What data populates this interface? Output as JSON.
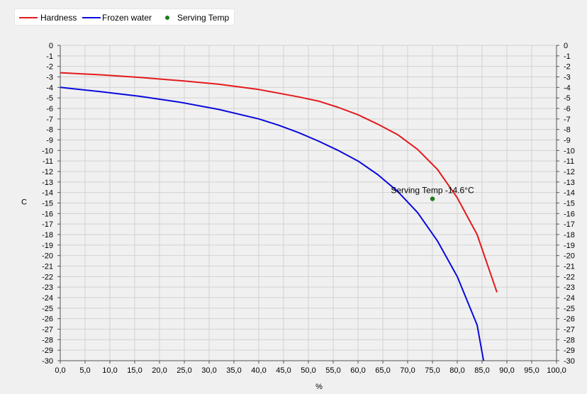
{
  "chart_data": {
    "type": "line",
    "title": "",
    "xlabel": "%",
    "ylabel": "C",
    "xlim": [
      0,
      100
    ],
    "ylim": [
      -30,
      0
    ],
    "x_ticks": [
      "0,0",
      "5,0",
      "10,0",
      "15,0",
      "20,0",
      "25,0",
      "30,0",
      "35,0",
      "40,0",
      "45,0",
      "50,0",
      "55,0",
      "60,0",
      "65,0",
      "70,0",
      "75,0",
      "80,0",
      "85,0",
      "90,0",
      "95,0",
      "100,0"
    ],
    "y_ticks": [
      "0",
      "-1",
      "-2",
      "-3",
      "-4",
      "-5",
      "-6",
      "-7",
      "-8",
      "-9",
      "-10",
      "-11",
      "-12",
      "-13",
      "-14",
      "-15",
      "-16",
      "-17",
      "-18",
      "-19",
      "-20",
      "-21",
      "-22",
      "-23",
      "-24",
      "-25",
      "-26",
      "-27",
      "-28",
      "-29",
      "-30"
    ],
    "grid": true,
    "legend_position": "top-left",
    "series": [
      {
        "name": "Hardness",
        "color": "#e41a1c",
        "x": [
          0,
          8,
          16,
          24,
          32,
          40,
          48,
          52,
          56,
          60,
          64,
          68,
          72,
          76,
          80,
          84,
          88
        ],
        "y": [
          -2.6,
          -2.8,
          -3.05,
          -3.35,
          -3.7,
          -4.2,
          -4.9,
          -5.3,
          -5.9,
          -6.6,
          -7.5,
          -8.5,
          -9.9,
          -11.8,
          -14.5,
          -18.0,
          -23.5
        ]
      },
      {
        "name": "Frozen water",
        "color": "#0a0adc",
        "x": [
          0,
          8,
          16,
          24,
          32,
          40,
          44,
          48,
          52,
          56,
          60,
          64,
          68,
          72,
          76,
          80,
          84,
          85.3
        ],
        "y": [
          -4.0,
          -4.4,
          -4.85,
          -5.4,
          -6.1,
          -7.0,
          -7.6,
          -8.3,
          -9.1,
          -10.0,
          -11.0,
          -12.3,
          -13.9,
          -15.9,
          -18.6,
          -22.0,
          -26.6,
          -30.0
        ]
      }
    ],
    "points": [
      {
        "name": "Serving Temp",
        "color": "#1e7a1e",
        "x": 75,
        "y": -14.6,
        "label": "Serving Temp -14.6°C"
      }
    ]
  }
}
